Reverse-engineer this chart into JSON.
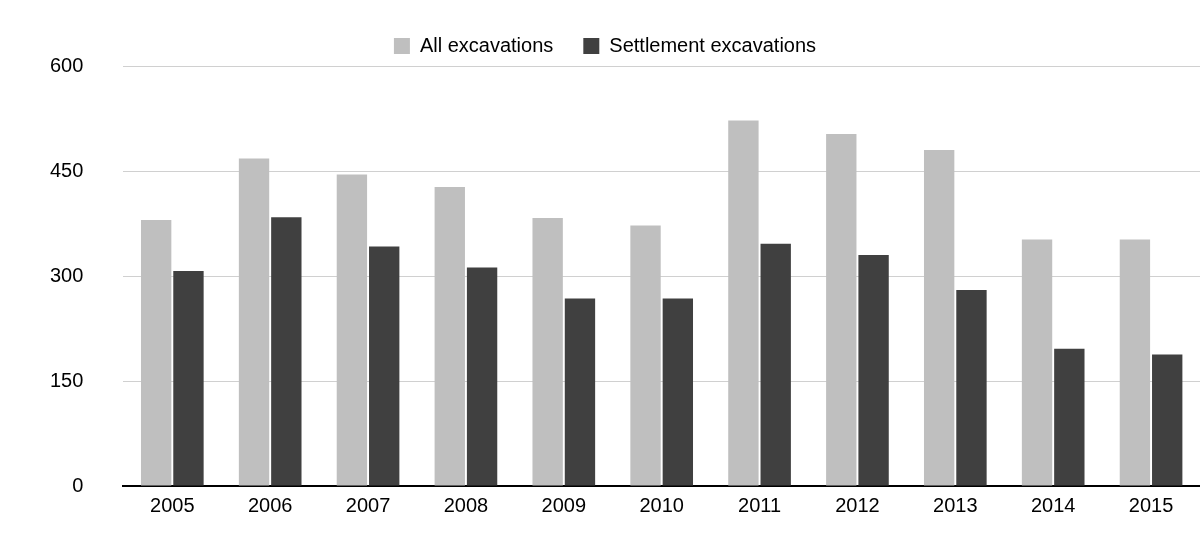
{
  "chart_data": {
    "type": "bar",
    "categories": [
      "2005",
      "2006",
      "2007",
      "2008",
      "2009",
      "2010",
      "2011",
      "2012",
      "2013",
      "2014",
      "2015"
    ],
    "series": [
      {
        "name": "All excavations",
        "color": "#bfbfbf",
        "values": [
          380,
          468,
          445,
          427,
          383,
          372,
          522,
          503,
          480,
          352,
          352
        ]
      },
      {
        "name": "Settlement excavations",
        "color": "#404040",
        "values": [
          307,
          384,
          342,
          312,
          268,
          268,
          346,
          330,
          280,
          196,
          188
        ]
      }
    ],
    "ylim": [
      0,
      600
    ],
    "yticks": [
      0,
      150,
      300,
      450,
      600
    ],
    "grid": "y",
    "legend": "top"
  }
}
